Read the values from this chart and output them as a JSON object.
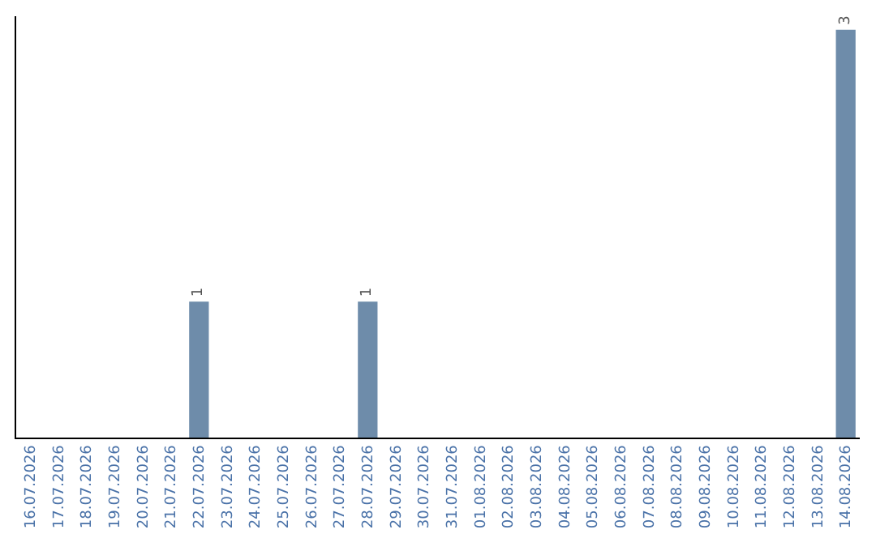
{
  "chart_data": {
    "type": "bar",
    "categories": [
      "16.07.2026",
      "17.07.2026",
      "18.07.2026",
      "19.07.2026",
      "20.07.2026",
      "21.07.2026",
      "22.07.2026",
      "23.07.2026",
      "24.07.2026",
      "25.07.2026",
      "26.07.2026",
      "27.07.2026",
      "28.07.2026",
      "29.07.2026",
      "30.07.2026",
      "31.07.2026",
      "01.08.2026",
      "02.08.2026",
      "03.08.2026",
      "04.08.2026",
      "05.08.2026",
      "06.08.2026",
      "07.08.2026",
      "08.08.2026",
      "09.08.2026",
      "10.08.2026",
      "11.08.2026",
      "12.08.2026",
      "13.08.2026",
      "14.08.2026"
    ],
    "values": [
      0,
      0,
      0,
      0,
      0,
      0,
      1,
      0,
      0,
      0,
      0,
      0,
      1,
      0,
      0,
      0,
      0,
      0,
      0,
      0,
      0,
      0,
      0,
      0,
      0,
      0,
      0,
      0,
      0,
      3
    ],
    "value_labels": [
      null,
      null,
      null,
      null,
      null,
      null,
      "1",
      null,
      null,
      null,
      null,
      null,
      "1",
      null,
      null,
      null,
      null,
      null,
      null,
      null,
      null,
      null,
      null,
      null,
      null,
      null,
      null,
      null,
      null,
      "3"
    ],
    "color": "#6e8caa",
    "ylim": [
      0,
      3.1
    ],
    "tick_labels": "x",
    "legend": false
  }
}
